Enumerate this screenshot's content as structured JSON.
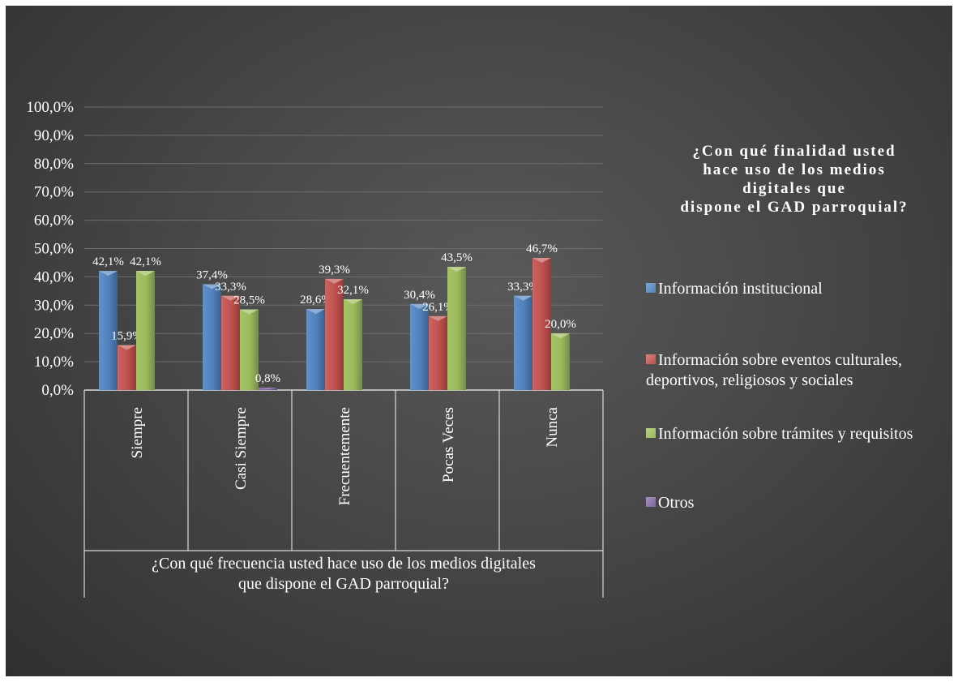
{
  "chart_data": {
    "type": "bar",
    "categories": [
      "Siempre",
      "Casi Siempre",
      "Frecuentemente",
      "Pocas Veces",
      "Nunca"
    ],
    "series": [
      {
        "name": "Información institucional",
        "color": "#4f81bd",
        "values": [
          42.1,
          37.4,
          28.6,
          30.4,
          33.3
        ],
        "labels": [
          "42,1%",
          "37,4%",
          "28,6%",
          "30,4%",
          "33,3%"
        ]
      },
      {
        "name": "Información sobre eventos culturales, deportivos, religiosos y sociales",
        "color": "#c0504d",
        "values": [
          15.9,
          33.3,
          39.3,
          26.1,
          46.7
        ],
        "labels": [
          "15,9%",
          "33,3%",
          "39,3%",
          "26,1%",
          "46,7%"
        ]
      },
      {
        "name": "Información sobre trámites y requisitos",
        "color": "#9bbb59",
        "values": [
          42.1,
          28.5,
          32.1,
          43.5,
          20.0
        ],
        "labels": [
          "42,1%",
          "28,5%",
          "32,1%",
          "43,5%",
          "20,0%"
        ]
      },
      {
        "name": "Otros",
        "color": "#8064a2",
        "values": [
          0,
          0.8,
          0,
          0,
          0
        ],
        "labels": [
          null,
          "0,8%",
          null,
          null,
          null
        ]
      }
    ],
    "y_ticks": [
      "0,0%",
      "10,0%",
      "20,0%",
      "30,0%",
      "40,0%",
      "50,0%",
      "60,0%",
      "70,0%",
      "80,0%",
      "90,0%",
      "100,0%"
    ],
    "ylim": [
      0,
      100
    ],
    "xlabel": "¿Con qué frecuencia usted hace uso de los medios digitales\nque dispone el GAD parroquial?",
    "legend_title": "¿Con qué finalidad usted\nhace uso de los medios\ndigitales que\ndispone el GAD parroquial?",
    "legend_position": "right",
    "grid": true
  }
}
